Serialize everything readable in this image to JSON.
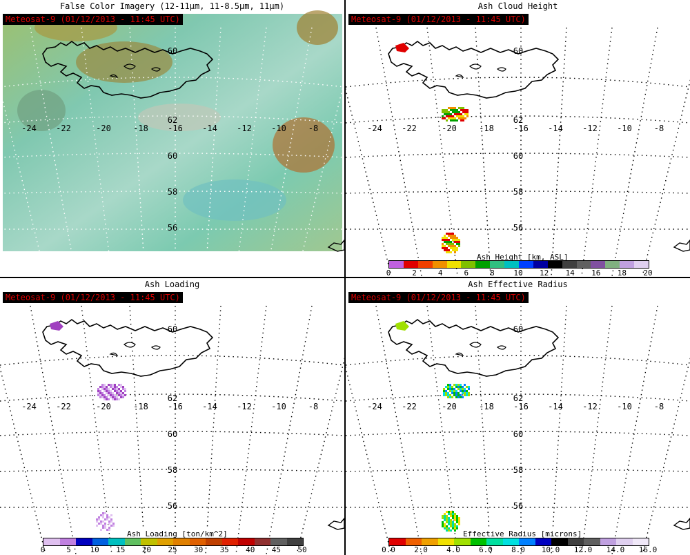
{
  "timestamp_badge": "Meteosat-9  (01/12/2013 - 11:45 UTC)",
  "panels": [
    {
      "title": "False Color Imagery (12-11μm, 11-8.5μm, 11μm)"
    },
    {
      "title": "Ash Cloud Height",
      "colorbar": {
        "title": "Ash Height [km, ASL]",
        "ticks": [
          "0",
          "2",
          "4",
          "6",
          "8",
          "10",
          "12",
          "14",
          "16",
          "18",
          "20"
        ],
        "colors": [
          "#c060e0",
          "#e00000",
          "#f04000",
          "#f09000",
          "#f0e000",
          "#80c000",
          "#00a000",
          "#30c080",
          "#00c0c0",
          "#0040ff",
          "#0000a0",
          "#000000",
          "#404040",
          "#606060",
          "#8050a0",
          "#80b080",
          "#c0a0e0",
          "#e0d0f0"
        ]
      }
    },
    {
      "title": "Ash Loading",
      "colorbar": {
        "title": "Ash Loading [ton/km^2]",
        "ticks": [
          "0",
          "5",
          "10",
          "15",
          "20",
          "25",
          "30",
          "35",
          "40",
          "45",
          "50"
        ],
        "colors": [
          "#e0c0f0",
          "#c080e0",
          "#0000c0",
          "#0060e0",
          "#00c0c0",
          "#60c060",
          "#c0c000",
          "#e0a000",
          "#e08000",
          "#e06000",
          "#c04000",
          "#e02000",
          "#c00000",
          "#903030",
          "#606060",
          "#404040"
        ]
      }
    },
    {
      "title": "Ash Effective Radius",
      "colorbar": {
        "title": "Effective Radius [microns]",
        "ticks": [
          "0.0",
          "2.0",
          "4.0",
          "6.0",
          "8.0",
          "10.0",
          "12.0",
          "14.0",
          "16.0"
        ],
        "colors": [
          "#e00000",
          "#f06000",
          "#f0a000",
          "#f0e000",
          "#a0e000",
          "#00c000",
          "#00e0a0",
          "#00e0e0",
          "#0080ff",
          "#0000c0",
          "#000000",
          "#404040",
          "#606060",
          "#c0a0e0",
          "#e0d0f0",
          "#f0e8f8"
        ]
      }
    }
  ],
  "lon_labels": [
    "-24",
    "-22",
    "-20",
    "-18",
    "-16",
    "-14",
    "-12",
    "-10",
    "-8"
  ],
  "lat_labels": [
    "62",
    "60",
    "58",
    "56"
  ]
}
